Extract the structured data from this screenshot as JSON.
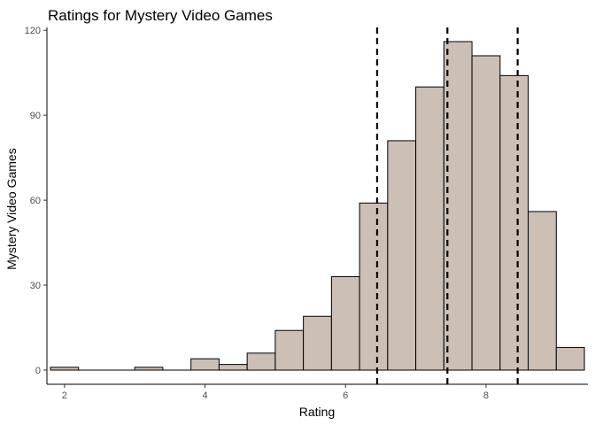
{
  "chart_data": {
    "type": "bar",
    "title": "Ratings for Mystery Video Games",
    "xlabel": "Rating",
    "ylabel": "Mystery Video Games",
    "xlim": [
      1.75,
      9.45
    ],
    "ylim": [
      -5,
      121
    ],
    "x_ticks": [
      2,
      4,
      6,
      8
    ],
    "x_tick_labels": [
      "2",
      "4",
      "6",
      "8"
    ],
    "y_ticks": [
      0,
      30,
      60,
      90,
      120
    ],
    "y_tick_labels": [
      "0",
      "30",
      "60",
      "90",
      "120"
    ],
    "bins": [
      {
        "start": 1.8,
        "end": 2.2,
        "count": 1
      },
      {
        "start": 2.2,
        "end": 2.6,
        "count": 0
      },
      {
        "start": 2.6,
        "end": 3.0,
        "count": 0
      },
      {
        "start": 3.0,
        "end": 3.4,
        "count": 1
      },
      {
        "start": 3.4,
        "end": 3.8,
        "count": 0
      },
      {
        "start": 3.8,
        "end": 4.2,
        "count": 4
      },
      {
        "start": 4.2,
        "end": 4.6,
        "count": 2
      },
      {
        "start": 4.6,
        "end": 5.0,
        "count": 6
      },
      {
        "start": 5.0,
        "end": 5.4,
        "count": 14
      },
      {
        "start": 5.4,
        "end": 5.8,
        "count": 19
      },
      {
        "start": 5.8,
        "end": 6.2,
        "count": 33
      },
      {
        "start": 6.2,
        "end": 6.6,
        "count": 59
      },
      {
        "start": 6.6,
        "end": 7.0,
        "count": 81
      },
      {
        "start": 7.0,
        "end": 7.4,
        "count": 100
      },
      {
        "start": 7.4,
        "end": 7.8,
        "count": 116
      },
      {
        "start": 7.8,
        "end": 8.2,
        "count": 111
      },
      {
        "start": 8.2,
        "end": 8.6,
        "count": 104
      },
      {
        "start": 8.6,
        "end": 9.0,
        "count": 56
      },
      {
        "start": 9.0,
        "end": 9.4,
        "count": 8
      }
    ],
    "reference_lines": [
      6.45,
      7.45,
      8.45
    ],
    "bar_fill": "#cbbfb6",
    "bar_stroke": "#000000",
    "reference_line_style": "dashed",
    "grid": false,
    "legend": "none"
  }
}
